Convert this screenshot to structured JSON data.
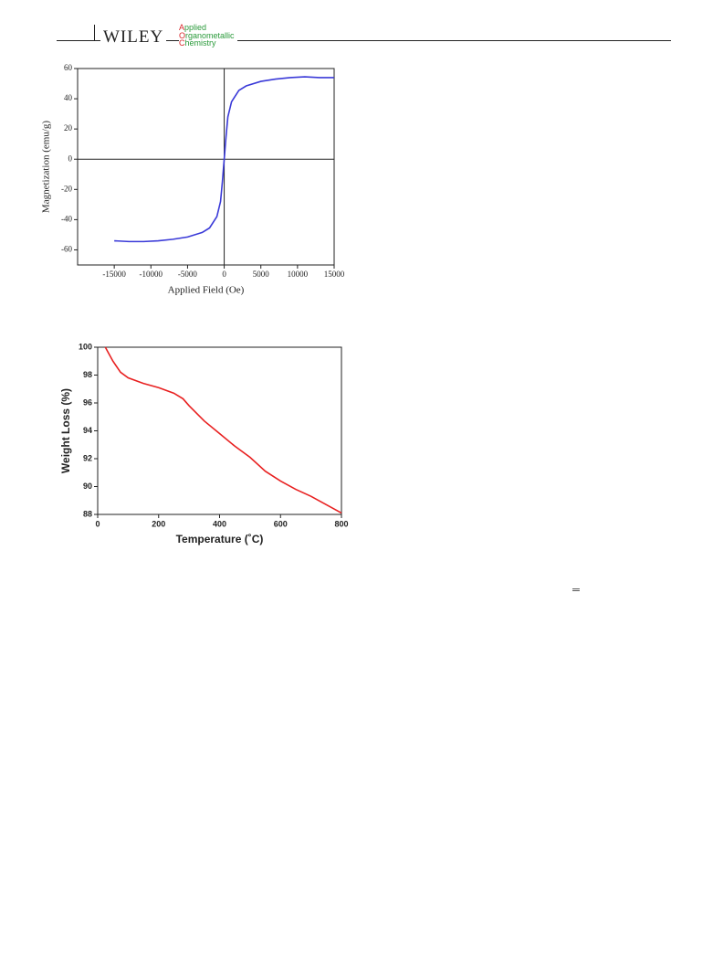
{
  "header": {
    "brand": "WILEY",
    "journal": [
      "Applied",
      "Organometallic",
      "Chemistry"
    ]
  },
  "mark": "═",
  "chart_data": [
    {
      "type": "line",
      "xlabel": "Applied Field (Oe)",
      "ylabel": "Magnetization (emu/g)",
      "xlim": [
        -20000,
        15000
      ],
      "xticks": [
        -15000,
        -10000,
        -5000,
        0,
        5000,
        10000,
        15000
      ],
      "ylim": [
        -70,
        60
      ],
      "yticks": [
        -60,
        -40,
        -20,
        0,
        20,
        40,
        60
      ],
      "zero_lines": true,
      "x": [
        -15000,
        -13000,
        -11000,
        -9000,
        -7000,
        -5000,
        -3000,
        -2000,
        -1000,
        -500,
        -250,
        0,
        250,
        500,
        1000,
        2000,
        3000,
        5000,
        7000,
        9000,
        11000,
        13000,
        15000
      ],
      "series": [
        {
          "color": "#3a3ad8",
          "values": [
            -54,
            -54.5,
            -54.5,
            -54,
            -53,
            -51.5,
            -48.5,
            -45.5,
            -38,
            -28,
            -15,
            0,
            15,
            28,
            38,
            45.5,
            48.5,
            51.5,
            53,
            54,
            54.5,
            54,
            54
          ]
        }
      ]
    },
    {
      "type": "line",
      "xlabel": "Temperature (˚C)",
      "ylabel": "Weight Loss (%)",
      "xlim": [
        0,
        800
      ],
      "xticks": [
        0,
        200,
        400,
        600,
        800
      ],
      "ylim": [
        88,
        100
      ],
      "yticks": [
        88,
        90,
        92,
        94,
        96,
        98,
        100
      ],
      "zero_lines": false,
      "x": [
        25,
        50,
        75,
        100,
        150,
        200,
        250,
        280,
        300,
        350,
        400,
        450,
        500,
        550,
        600,
        650,
        700,
        750,
        800
      ],
      "series": [
        {
          "color": "#e82020",
          "values": [
            100,
            99,
            98.2,
            97.8,
            97.4,
            97.1,
            96.7,
            96.3,
            95.8,
            94.7,
            93.8,
            92.9,
            92.1,
            91.1,
            90.4,
            89.8,
            89.3,
            88.7,
            88.1
          ]
        }
      ]
    }
  ]
}
